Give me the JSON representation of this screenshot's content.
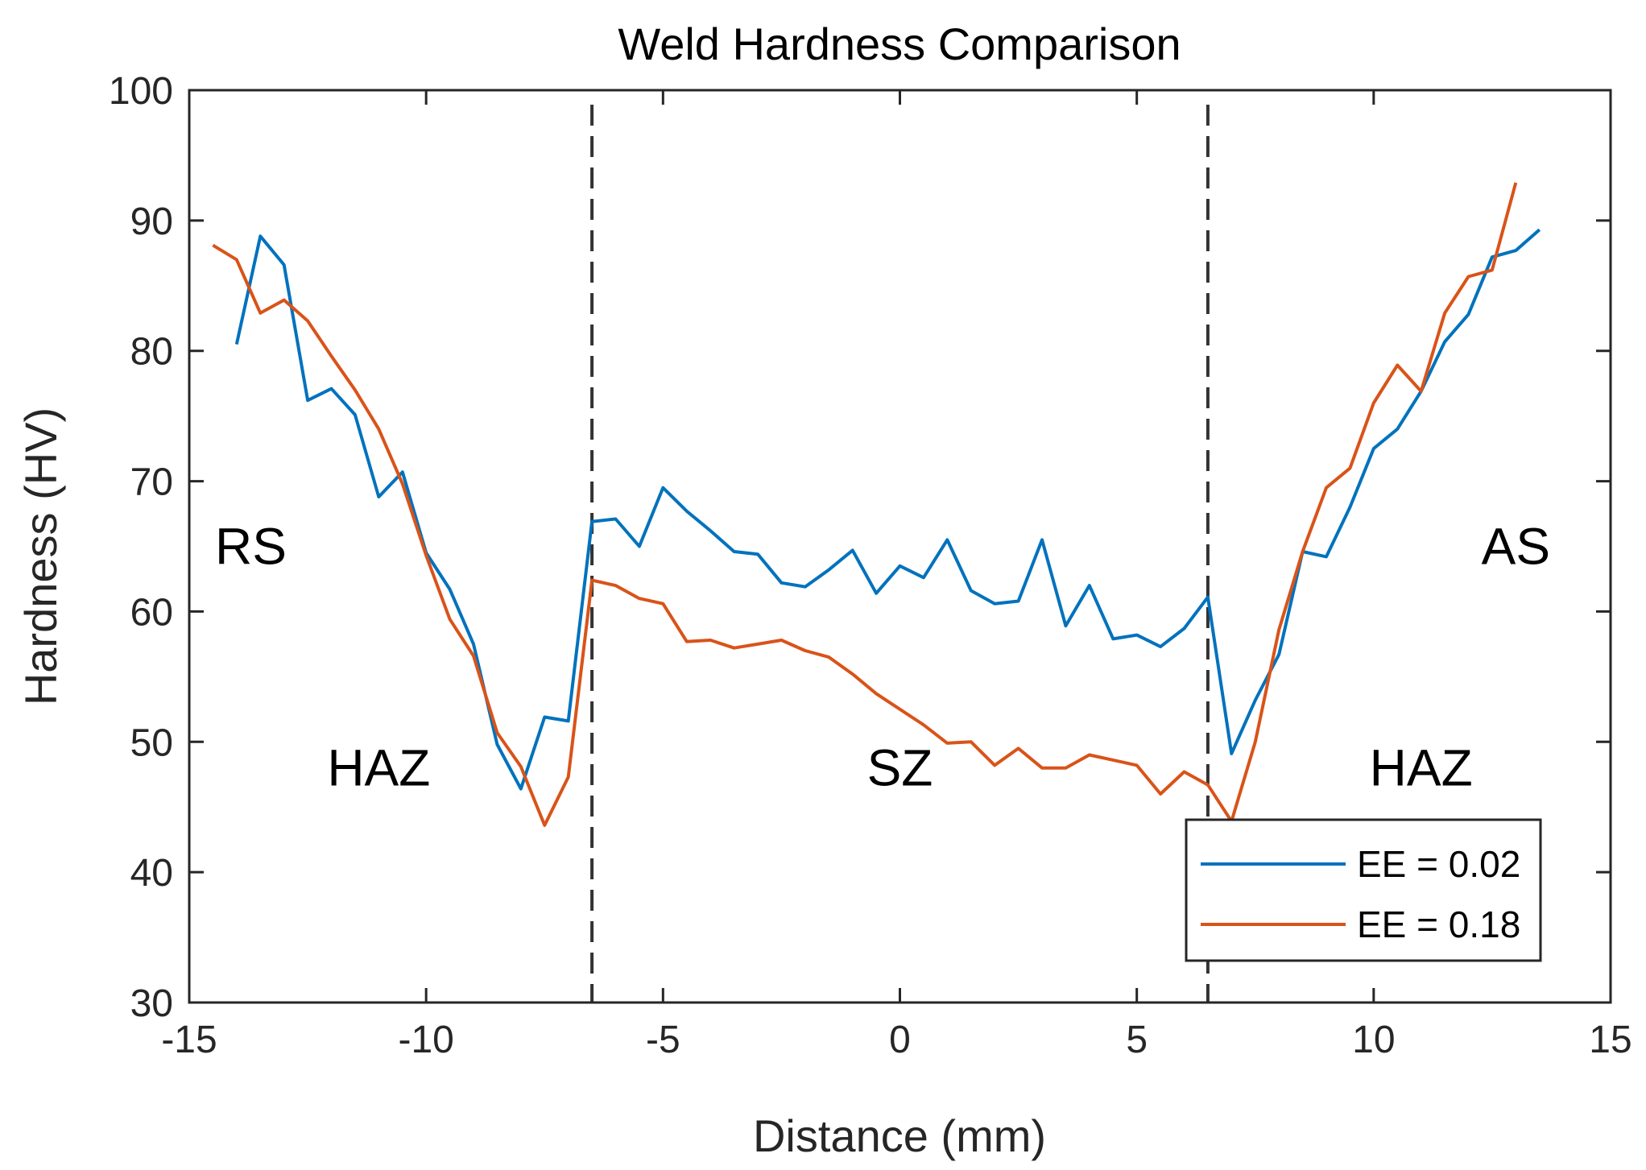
{
  "chart_data": {
    "type": "line",
    "title": "Weld Hardness Comparison",
    "xlabel": "Distance (mm)",
    "ylabel": "Hardness (HV)",
    "xlim": [
      -15,
      15
    ],
    "ylim": [
      30,
      100
    ],
    "x_ticks": [
      -15,
      -10,
      -5,
      0,
      5,
      10,
      15
    ],
    "y_ticks": [
      30,
      40,
      50,
      60,
      70,
      80,
      90,
      100
    ],
    "x_tick_labels": [
      "-15",
      "-10",
      "-5",
      "0",
      "5",
      "10",
      "15"
    ],
    "y_tick_labels": [
      "30",
      "40",
      "50",
      "60",
      "70",
      "80",
      "90",
      "100"
    ],
    "grid": false,
    "legend_position": "bottom-right",
    "vertical_lines": [
      -6.5,
      6.5
    ],
    "annotations": [
      {
        "text": "RS",
        "x": -13.7,
        "y": 65.0
      },
      {
        "text": "HAZ",
        "x": -11.0,
        "y": 48.0
      },
      {
        "text": "SZ",
        "x": 0.0,
        "y": 48.0
      },
      {
        "text": "HAZ",
        "x": 11.0,
        "y": 48.0
      },
      {
        "text": "AS",
        "x": 13.0,
        "y": 65.0
      }
    ],
    "series": [
      {
        "name": "EE = 0.02",
        "color": "#0072BD",
        "x": [
          -14,
          -13.5,
          -13,
          -12.5,
          -12,
          -11.5,
          -11,
          -10.5,
          -10,
          -9.5,
          -9,
          -8.5,
          -8,
          -7.5,
          -7,
          -6.5,
          -6,
          -5.5,
          -5,
          -4.5,
          -4,
          -3.5,
          -3,
          -2.5,
          -2,
          -1.5,
          -1,
          -0.5,
          0,
          0.5,
          1,
          1.5,
          2,
          2.5,
          3,
          3.5,
          4,
          4.5,
          5,
          5.5,
          6,
          6.5,
          7,
          7.5,
          8,
          8.5,
          9,
          9.5,
          10,
          10.5,
          11,
          11.5,
          12,
          12.5,
          13,
          13.5
        ],
        "values": [
          80.5,
          88.8,
          86.6,
          76.2,
          77.1,
          75.1,
          68.8,
          70.7,
          64.5,
          61.7,
          57.5,
          49.8,
          46.4,
          51.9,
          51.6,
          66.9,
          67.1,
          65.0,
          69.5,
          67.7,
          66.2,
          64.6,
          64.4,
          62.2,
          61.9,
          63.2,
          64.7,
          61.4,
          63.5,
          62.6,
          65.5,
          61.6,
          60.6,
          60.8,
          65.5,
          58.9,
          62.0,
          57.9,
          58.2,
          57.3,
          58.7,
          61.1,
          49.1,
          53.2,
          56.7,
          64.6,
          64.2,
          68.0,
          72.5,
          74.0,
          76.9,
          80.7,
          82.8,
          87.2,
          87.7,
          89.3
        ]
      },
      {
        "name": "EE = 0.18",
        "color": "#D95319",
        "x": [
          -14.5,
          -14,
          -13.5,
          -13,
          -12.5,
          -12,
          -11.5,
          -11,
          -10.5,
          -10,
          -9.5,
          -9,
          -8.5,
          -8,
          -7.5,
          -7,
          -6.5,
          -6,
          -5.5,
          -5,
          -4.5,
          -4,
          -3.5,
          -3,
          -2.5,
          -2,
          -1.5,
          -1,
          -0.5,
          0,
          0.5,
          1,
          1.5,
          2,
          2.5,
          3,
          3.5,
          4,
          4.5,
          5,
          5.5,
          6,
          6.5,
          7,
          7.5,
          8,
          8.5,
          9,
          9.5,
          10,
          10.5,
          11,
          11.5,
          12,
          12.5,
          13
        ],
        "values": [
          88.1,
          87.0,
          82.9,
          83.9,
          82.3,
          79.6,
          77.0,
          74.0,
          69.8,
          64.3,
          59.4,
          56.6,
          50.7,
          48.1,
          43.6,
          47.3,
          62.4,
          62.0,
          61.0,
          60.6,
          57.7,
          57.8,
          57.2,
          57.5,
          57.8,
          57.0,
          56.5,
          55.2,
          53.7,
          52.5,
          51.3,
          49.9,
          50.0,
          48.2,
          49.5,
          48.0,
          48.0,
          49.0,
          48.6,
          48.2,
          46.0,
          47.7,
          46.7,
          43.9,
          50.0,
          58.6,
          64.6,
          69.5,
          71.0,
          76.0,
          78.9,
          76.9,
          82.9,
          85.7,
          86.2,
          92.9
        ]
      }
    ]
  }
}
